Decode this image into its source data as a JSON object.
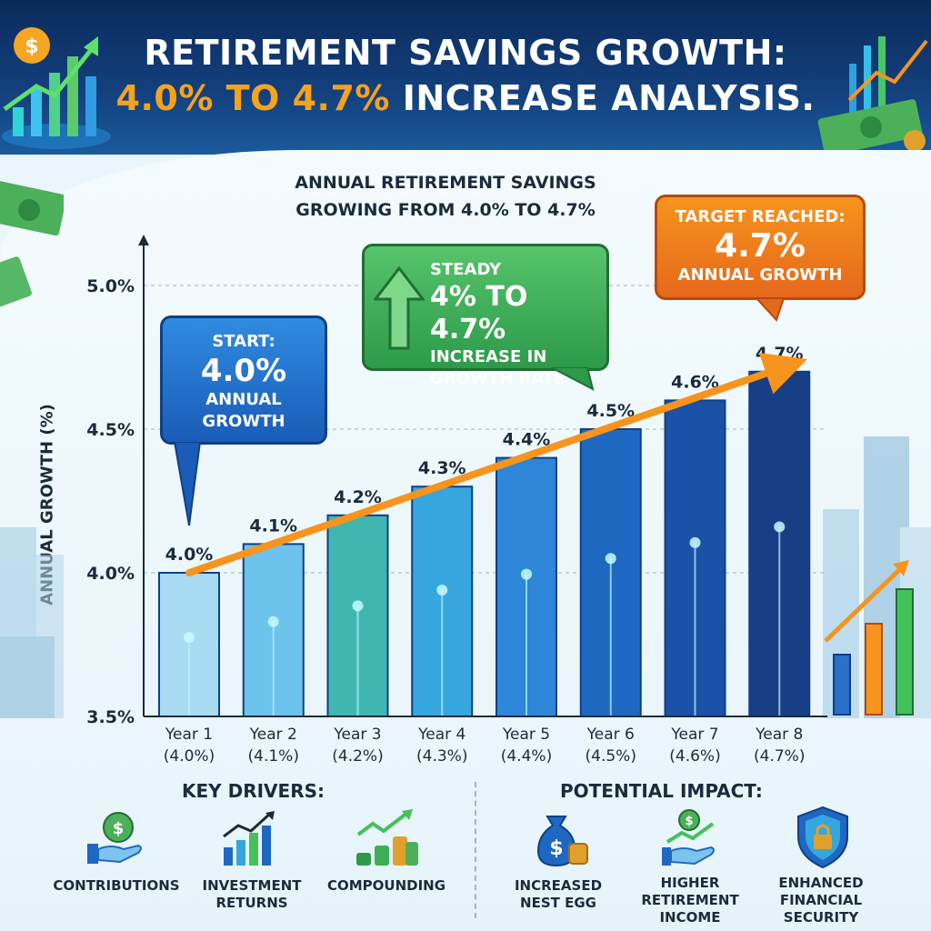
{
  "header": {
    "title_line1": "RETIREMENT SAVINGS GROWTH:",
    "title_line2_highlight": "4.0% TO 4.7%",
    "title_line2_rest": " INCREASE ANALYSIS."
  },
  "colors": {
    "header_bg": "#13407d",
    "highlight": "#f7a21b",
    "trend_arrow": "#f7941d",
    "callout_start": "#2f8be0",
    "callout_steady": "#3fae58",
    "callout_target": "#f08a1d"
  },
  "callouts": {
    "start": {
      "line1": "START:",
      "value": "4.0%",
      "line2": "ANNUAL",
      "line3": "GROWTH"
    },
    "steady": {
      "line1": "STEADY",
      "value": "4% TO 4.7%",
      "line2": "INCREASE IN",
      "line3": "GROWTH RATE"
    },
    "target": {
      "line1": "TARGET REACHED:",
      "value": "4.7%",
      "line2": "ANNUAL GROWTH"
    }
  },
  "chart_data": {
    "type": "bar",
    "title": [
      "ANNUAL RETIREMENT SAVINGS",
      "GROWING FROM 4.0% TO 4.7%"
    ],
    "ylabel": "ANNUAL GROWTH (%)",
    "xlabel": "",
    "categories": [
      "Year 1",
      "Year 2",
      "Year 3",
      "Year 4",
      "Year 5",
      "Year 6",
      "Year 7",
      "Year 8"
    ],
    "category_sublabels": [
      "(4.0%)",
      "(4.1%)",
      "(4.2%)",
      "(4.3%)",
      "(4.4%)",
      "(4.5%)",
      "(4.6%)",
      "(4.7%)"
    ],
    "values": [
      4.0,
      4.1,
      4.2,
      4.3,
      4.4,
      4.5,
      4.6,
      4.7
    ],
    "data_labels": [
      "4.0%",
      "4.1%",
      "4.2%",
      "4.3%",
      "4.4%",
      "4.5%",
      "4.6%",
      "4.7%"
    ],
    "ylim": [
      3.5,
      5.0
    ],
    "yticks": [
      3.5,
      4.0,
      4.5,
      5.0
    ],
    "ytick_labels": [
      "3.5%",
      "4.0%",
      "4.5%",
      "5.0%"
    ],
    "grid": true,
    "bar_colors": [
      "#a9dcf3",
      "#6cc4ec",
      "#3fb7b0",
      "#36a6de",
      "#2d86d8",
      "#1f68c2",
      "#1b52a7",
      "#183f86"
    ],
    "trend": "increasing"
  },
  "key_drivers": {
    "title": "KEY DRIVERS:",
    "items": [
      {
        "icon": "hand-coin-icon",
        "label": [
          "CONTRIBUTIONS"
        ]
      },
      {
        "icon": "bar-growth-icon",
        "label": [
          "INVESTMENT",
          "RETURNS"
        ]
      },
      {
        "icon": "coin-stack-growth-icon",
        "label": [
          "COMPOUNDING"
        ]
      }
    ]
  },
  "potential_impact": {
    "title": "POTENTIAL IMPACT:",
    "items": [
      {
        "icon": "money-bag-icon",
        "label": [
          "INCREASED",
          "NEST EGG"
        ]
      },
      {
        "icon": "hand-growth-icon",
        "label": [
          "HIGHER",
          "RETIREMENT",
          "INCOME"
        ]
      },
      {
        "icon": "shield-lock-icon",
        "label": [
          "ENHANCED",
          "FINANCIAL",
          "SECURITY"
        ]
      }
    ]
  }
}
